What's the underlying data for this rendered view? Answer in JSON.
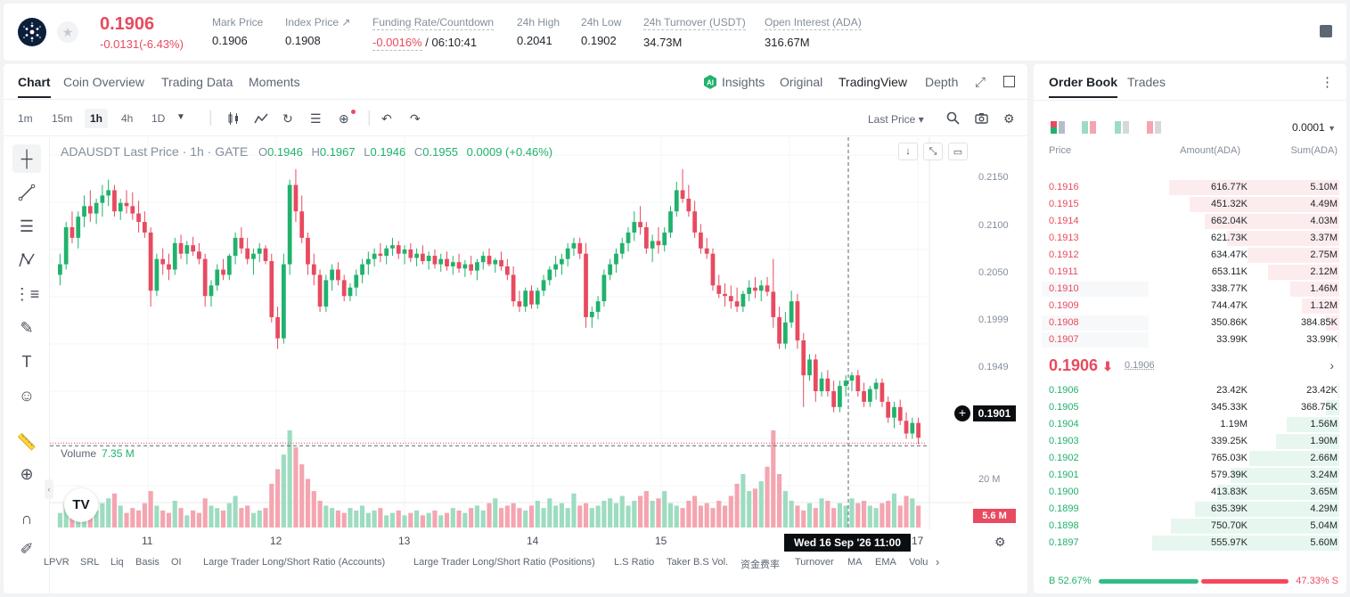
{
  "header": {
    "last_price": "0.1906",
    "change": "-0.0131(-6.43%)",
    "stats": [
      {
        "label": "Mark Price",
        "value": "0.1906"
      },
      {
        "label": "Index Price ↗",
        "value": "0.1908"
      },
      {
        "label": "Funding Rate/Countdown",
        "value_a": "-0.0016%",
        "value_b": " / 06:10:41"
      },
      {
        "label": "24h High",
        "value": "0.2041"
      },
      {
        "label": "24h Low",
        "value": "0.1902"
      },
      {
        "label": "24h Turnover (USDT)",
        "value": "34.73M"
      },
      {
        "label": "Open Interest (ADA)",
        "value": "316.67M"
      }
    ]
  },
  "chart_tabs": [
    "Chart",
    "Coin Overview",
    "Trading Data",
    "Moments"
  ],
  "view_tabs": [
    "Insights",
    "Original",
    "TradingView",
    "Depth"
  ],
  "intervals": [
    "1m",
    "15m",
    "1h",
    "4h",
    "1D"
  ],
  "price_type": "Last Price",
  "legend": {
    "symbol": "ADAUSDT Last Price · 1h · GATE",
    "o": "0.1946",
    "h": "0.1967",
    "l": "0.1946",
    "c": "0.1955",
    "chg": "0.0009 (+0.46%)"
  },
  "price_axis": [
    "0.2150",
    "0.2100",
    "0.2050",
    "0.1999",
    "0.1949"
  ],
  "current_price_tag": "0.1901",
  "volume": {
    "label": "Volume",
    "value": "7.35 M",
    "axis": "20 M",
    "tag": "5.6 M"
  },
  "x_ticks": [
    "11",
    "12",
    "13",
    "14",
    "15",
    "17"
  ],
  "crosshair_time": "Wed 16 Sep '26   11:00",
  "tv_logo": "17",
  "indicators": [
    "LPVR",
    "SRL",
    "Liq",
    "Basis",
    "OI",
    "Large Trader Long/Short Ratio (Accounts)",
    "Large Trader Long/Short Ratio (Positions)",
    "L.S Ratio",
    "Taker B.S Vol.",
    "资金费率",
    "Turnover",
    "MA",
    "EMA",
    "Volu"
  ],
  "order_book": {
    "tabs": [
      "Order Book",
      "Trades"
    ],
    "precision": "0.0001",
    "headers": {
      "price": "Price",
      "amount": "Amount(ADA)",
      "sum": "Sum(ADA)"
    },
    "asks": [
      {
        "price": "0.1916",
        "amount": "616.77K",
        "sum": "5.10M",
        "depth": 0.91
      },
      {
        "price": "0.1915",
        "amount": "451.32K",
        "sum": "4.49M",
        "depth": 0.8
      },
      {
        "price": "0.1914",
        "amount": "662.04K",
        "sum": "4.03M",
        "depth": 0.72
      },
      {
        "price": "0.1913",
        "amount": "621.73K",
        "sum": "3.37M",
        "depth": 0.6
      },
      {
        "price": "0.1912",
        "amount": "634.47K",
        "sum": "2.75M",
        "depth": 0.49
      },
      {
        "price": "0.1911",
        "amount": "653.11K",
        "sum": "2.12M",
        "depth": 0.38
      },
      {
        "price": "0.1910",
        "amount": "338.77K",
        "sum": "1.46M",
        "depth": 0.26
      },
      {
        "price": "0.1909",
        "amount": "744.47K",
        "sum": "1.12M",
        "depth": 0.2
      },
      {
        "price": "0.1908",
        "amount": "350.86K",
        "sum": "384.85K",
        "depth": 0.07
      },
      {
        "price": "0.1907",
        "amount": "33.99K",
        "sum": "33.99K",
        "depth": 0.01
      }
    ],
    "mid_price": "0.1906",
    "mid_arrow": "⬇",
    "mid_mark": "0.1906",
    "bids": [
      {
        "price": "0.1906",
        "amount": "23.42K",
        "sum": "23.42K",
        "depth": 0.01
      },
      {
        "price": "0.1905",
        "amount": "345.33K",
        "sum": "368.75K",
        "depth": 0.07
      },
      {
        "price": "0.1904",
        "amount": "1.19M",
        "sum": "1.56M",
        "depth": 0.28
      },
      {
        "price": "0.1903",
        "amount": "339.25K",
        "sum": "1.90M",
        "depth": 0.34
      },
      {
        "price": "0.1902",
        "amount": "765.03K",
        "sum": "2.66M",
        "depth": 0.48
      },
      {
        "price": "0.1901",
        "amount": "579.39K",
        "sum": "3.24M",
        "depth": 0.58
      },
      {
        "price": "0.1900",
        "amount": "413.83K",
        "sum": "3.65M",
        "depth": 0.65
      },
      {
        "price": "0.1899",
        "amount": "635.39K",
        "sum": "4.29M",
        "depth": 0.77
      },
      {
        "price": "0.1898",
        "amount": "750.70K",
        "sum": "5.04M",
        "depth": 0.9
      },
      {
        "price": "0.1897",
        "amount": "555.97K",
        "sum": "5.60M",
        "depth": 1.0
      }
    ],
    "buy_ratio": "B 52.67%",
    "sell_ratio": "47.33% S",
    "buy_fraction": 0.5267
  },
  "colors": {
    "up": "#20b26c",
    "down": "#e84a5f",
    "up_vol": "#9ddcc0",
    "down_vol": "#f4a5b0"
  },
  "icons": [
    "cardano-logo",
    "star-icon",
    "book-icon",
    "expand-icon",
    "window-icon",
    "more-icon"
  ],
  "chart_data": {
    "type": "candlestick",
    "title": "ADAUSDT Last Price · 1h · GATE",
    "ylim": [
      0.187,
      0.218
    ],
    "candles": [
      [
        0.206,
        0.208,
        0.205,
        0.207
      ],
      [
        0.207,
        0.211,
        0.2065,
        0.2105
      ],
      [
        0.2105,
        0.212,
        0.209,
        0.2095
      ],
      [
        0.2095,
        0.212,
        0.2085,
        0.2115
      ],
      [
        0.2115,
        0.2135,
        0.2105,
        0.2125
      ],
      [
        0.2125,
        0.214,
        0.211,
        0.2118
      ],
      [
        0.2118,
        0.2132,
        0.2108,
        0.2128
      ],
      [
        0.2128,
        0.2145,
        0.2115,
        0.2135
      ],
      [
        0.2135,
        0.215,
        0.2125,
        0.214
      ],
      [
        0.214,
        0.2145,
        0.2115,
        0.212
      ],
      [
        0.212,
        0.2132,
        0.2112,
        0.2128
      ],
      [
        0.2128,
        0.214,
        0.2118,
        0.2125
      ],
      [
        0.2125,
        0.2138,
        0.2112,
        0.2118
      ],
      [
        0.2118,
        0.213,
        0.21,
        0.211
      ],
      [
        0.211,
        0.212,
        0.2095,
        0.21
      ],
      [
        0.21,
        0.2105,
        0.203,
        0.2045
      ],
      [
        0.2045,
        0.208,
        0.204,
        0.2075
      ],
      [
        0.2075,
        0.2085,
        0.206,
        0.207
      ],
      [
        0.207,
        0.208,
        0.2055,
        0.2065
      ],
      [
        0.2065,
        0.2095,
        0.206,
        0.209
      ],
      [
        0.209,
        0.2098,
        0.2075,
        0.208
      ],
      [
        0.208,
        0.2092,
        0.207,
        0.2088
      ],
      [
        0.2088,
        0.2096,
        0.2078,
        0.2082
      ],
      [
        0.2082,
        0.209,
        0.207,
        0.2075
      ],
      [
        0.2075,
        0.208,
        0.203,
        0.204
      ],
      [
        0.204,
        0.2055,
        0.203,
        0.205
      ],
      [
        0.205,
        0.207,
        0.2045,
        0.2065
      ],
      [
        0.2065,
        0.2075,
        0.2055,
        0.206
      ],
      [
        0.206,
        0.208,
        0.2055,
        0.2078
      ],
      [
        0.2078,
        0.21,
        0.207,
        0.2095
      ],
      [
        0.2095,
        0.2105,
        0.208,
        0.2085
      ],
      [
        0.2085,
        0.2095,
        0.207,
        0.2075
      ],
      [
        0.2075,
        0.2085,
        0.206,
        0.208
      ],
      [
        0.208,
        0.209,
        0.2072,
        0.2085
      ],
      [
        0.2085,
        0.2088,
        0.207,
        0.2073
      ],
      [
        0.2073,
        0.208,
        0.2015,
        0.202
      ],
      [
        0.202,
        0.203,
        0.199,
        0.2
      ],
      [
        0.2,
        0.208,
        0.1995,
        0.207
      ],
      [
        0.207,
        0.215,
        0.206,
        0.2145
      ],
      [
        0.2145,
        0.216,
        0.211,
        0.212
      ],
      [
        0.212,
        0.2135,
        0.209,
        0.2095
      ],
      [
        0.2095,
        0.21,
        0.206,
        0.207
      ],
      [
        0.207,
        0.208,
        0.205,
        0.206
      ],
      [
        0.206,
        0.2065,
        0.2025,
        0.203
      ],
      [
        0.203,
        0.206,
        0.2025,
        0.2055
      ],
      [
        0.2055,
        0.207,
        0.2045,
        0.2065
      ],
      [
        0.2065,
        0.2072,
        0.205,
        0.2055
      ],
      [
        0.2055,
        0.206,
        0.2035,
        0.204
      ],
      [
        0.204,
        0.2052,
        0.2035,
        0.2048
      ],
      [
        0.2048,
        0.2065,
        0.204,
        0.206
      ],
      [
        0.206,
        0.2075,
        0.2052,
        0.207
      ],
      [
        0.207,
        0.2082,
        0.206,
        0.2075
      ],
      [
        0.2075,
        0.2085,
        0.2068,
        0.208
      ],
      [
        0.208,
        0.209,
        0.2072,
        0.2078
      ],
      [
        0.2078,
        0.2088,
        0.207,
        0.2085
      ],
      [
        0.2085,
        0.2095,
        0.2078,
        0.2088
      ],
      [
        0.2088,
        0.2092,
        0.2075,
        0.208
      ],
      [
        0.208,
        0.2088,
        0.207,
        0.2084
      ],
      [
        0.2084,
        0.209,
        0.2072,
        0.2076
      ],
      [
        0.2076,
        0.2085,
        0.2068,
        0.208
      ],
      [
        0.208,
        0.2088,
        0.207,
        0.2073
      ],
      [
        0.2073,
        0.2082,
        0.2065,
        0.2078
      ],
      [
        0.2078,
        0.2084,
        0.2066,
        0.207
      ],
      [
        0.207,
        0.208,
        0.2063,
        0.2075
      ],
      [
        0.2075,
        0.2082,
        0.2064,
        0.2068
      ],
      [
        0.2068,
        0.2078,
        0.206,
        0.2072
      ],
      [
        0.2072,
        0.208,
        0.2062,
        0.2066
      ],
      [
        0.2066,
        0.2074,
        0.2058,
        0.207
      ],
      [
        0.207,
        0.2078,
        0.206,
        0.2064
      ],
      [
        0.2064,
        0.2075,
        0.2055,
        0.2072
      ],
      [
        0.2072,
        0.2082,
        0.2065,
        0.2078
      ],
      [
        0.2078,
        0.2085,
        0.2068,
        0.207
      ],
      [
        0.207,
        0.2076,
        0.2062,
        0.2074
      ],
      [
        0.2074,
        0.2082,
        0.2064,
        0.2068
      ],
      [
        0.2068,
        0.2075,
        0.2055,
        0.206
      ],
      [
        0.206,
        0.2068,
        0.203,
        0.2035
      ],
      [
        0.2035,
        0.2045,
        0.2025,
        0.203
      ],
      [
        0.203,
        0.2048,
        0.2025,
        0.2045
      ],
      [
        0.2045,
        0.205,
        0.2028,
        0.2032
      ],
      [
        0.2032,
        0.2048,
        0.2028,
        0.2045
      ],
      [
        0.2045,
        0.206,
        0.204,
        0.2055
      ],
      [
        0.2055,
        0.2068,
        0.205,
        0.2065
      ],
      [
        0.2065,
        0.2078,
        0.2058,
        0.207
      ],
      [
        0.207,
        0.208,
        0.206,
        0.2075
      ],
      [
        0.2075,
        0.209,
        0.2068,
        0.2085
      ],
      [
        0.2085,
        0.2095,
        0.2078,
        0.209
      ],
      [
        0.209,
        0.2095,
        0.2075,
        0.208
      ],
      [
        0.208,
        0.209,
        0.201,
        0.202
      ],
      [
        0.202,
        0.203,
        0.201,
        0.2025
      ],
      [
        0.2025,
        0.204,
        0.2018,
        0.2035
      ],
      [
        0.2035,
        0.2065,
        0.203,
        0.206
      ],
      [
        0.206,
        0.2075,
        0.2055,
        0.207
      ],
      [
        0.207,
        0.2085,
        0.2062,
        0.208
      ],
      [
        0.208,
        0.2095,
        0.2075,
        0.209
      ],
      [
        0.209,
        0.2105,
        0.2082,
        0.21
      ],
      [
        0.21,
        0.212,
        0.2092,
        0.211
      ],
      [
        0.211,
        0.2125,
        0.2098,
        0.2105
      ],
      [
        0.2105,
        0.211,
        0.208,
        0.2085
      ],
      [
        0.2085,
        0.2098,
        0.2072,
        0.2092
      ],
      [
        0.2092,
        0.2105,
        0.208,
        0.2088
      ],
      [
        0.2088,
        0.2105,
        0.2082,
        0.21
      ],
      [
        0.21,
        0.2125,
        0.2095,
        0.212
      ],
      [
        0.212,
        0.2148,
        0.2115,
        0.214
      ],
      [
        0.214,
        0.216,
        0.2128,
        0.2132
      ],
      [
        0.2132,
        0.2145,
        0.2115,
        0.212
      ],
      [
        0.212,
        0.213,
        0.2095,
        0.21
      ],
      [
        0.21,
        0.2108,
        0.208,
        0.2085
      ],
      [
        0.2085,
        0.2095,
        0.2075,
        0.208
      ],
      [
        0.208,
        0.2085,
        0.2045,
        0.205
      ],
      [
        0.205,
        0.206,
        0.2038,
        0.2042
      ],
      [
        0.2042,
        0.2052,
        0.203,
        0.204
      ],
      [
        0.204,
        0.205,
        0.2028,
        0.2035
      ],
      [
        0.2035,
        0.2048,
        0.2025,
        0.203
      ],
      [
        0.203,
        0.2045,
        0.2025,
        0.2042
      ],
      [
        0.2042,
        0.2055,
        0.2035,
        0.2048
      ],
      [
        0.2048,
        0.2058,
        0.2038,
        0.2045
      ],
      [
        0.2045,
        0.2055,
        0.2035,
        0.205
      ],
      [
        0.205,
        0.2058,
        0.204,
        0.2044
      ],
      [
        0.2044,
        0.2075,
        0.201,
        0.202
      ],
      [
        0.202,
        0.203,
        0.199,
        0.1995
      ],
      [
        0.1995,
        0.2025,
        0.199,
        0.2015
      ],
      [
        0.2015,
        0.2045,
        0.201,
        0.2035
      ],
      [
        0.2035,
        0.2042,
        0.199,
        0.1998
      ],
      [
        0.1998,
        0.2005,
        0.1935,
        0.1965
      ],
      [
        0.1965,
        0.1985,
        0.196,
        0.198
      ],
      [
        0.198,
        0.1985,
        0.194,
        0.195
      ],
      [
        0.195,
        0.1968,
        0.1945,
        0.1962
      ],
      [
        0.1962,
        0.197,
        0.1945,
        0.195
      ],
      [
        0.195,
        0.196,
        0.193,
        0.1935
      ],
      [
        0.1935,
        0.196,
        0.193,
        0.1955
      ],
      [
        0.1955,
        0.1965,
        0.1945,
        0.196
      ],
      [
        0.196,
        0.1968,
        0.195,
        0.1965
      ],
      [
        0.1965,
        0.197,
        0.1945,
        0.195
      ],
      [
        0.195,
        0.1958,
        0.1935,
        0.194
      ],
      [
        0.194,
        0.1955,
        0.1935,
        0.1952
      ],
      [
        0.1952,
        0.1962,
        0.1942,
        0.1958
      ],
      [
        0.1958,
        0.1962,
        0.1935,
        0.194
      ],
      [
        0.194,
        0.1945,
        0.192,
        0.1925
      ],
      [
        0.1925,
        0.194,
        0.1915,
        0.1935
      ],
      [
        0.1935,
        0.1942,
        0.1918,
        0.1922
      ],
      [
        0.1922,
        0.193,
        0.1905,
        0.191
      ],
      [
        0.191,
        0.1925,
        0.1905,
        0.192
      ],
      [
        0.192,
        0.1925,
        0.19,
        0.1906
      ]
    ],
    "volumes": [
      6,
      10,
      9,
      13,
      11,
      8,
      7,
      10,
      12,
      14,
      9,
      6,
      8,
      7,
      10,
      15,
      9,
      7,
      6,
      11,
      8,
      5,
      7,
      6,
      12,
      9,
      8,
      7,
      10,
      13,
      8,
      9,
      6,
      7,
      8,
      18,
      24,
      30,
      40,
      33,
      26,
      20,
      15,
      11,
      9,
      8,
      7,
      6,
      8,
      7,
      9,
      6,
      7,
      8,
      5,
      6,
      7,
      5,
      6,
      7,
      5,
      6,
      7,
      5,
      6,
      8,
      7,
      6,
      8,
      9,
      7,
      10,
      12,
      8,
      9,
      10,
      8,
      7,
      9,
      11,
      8,
      12,
      9,
      10,
      8,
      14,
      9,
      10,
      8,
      9,
      11,
      12,
      10,
      13,
      9,
      11,
      13,
      15,
      11,
      12,
      15,
      10,
      9,
      8,
      11,
      13,
      9,
      10,
      8,
      11,
      9,
      13,
      18,
      22,
      15,
      16,
      19,
      25,
      40,
      22,
      15,
      11,
      9,
      7,
      10,
      8,
      12,
      11,
      8,
      10,
      9,
      12,
      10,
      11,
      9,
      8,
      10,
      11,
      14,
      9,
      13,
      12,
      9
    ]
  }
}
